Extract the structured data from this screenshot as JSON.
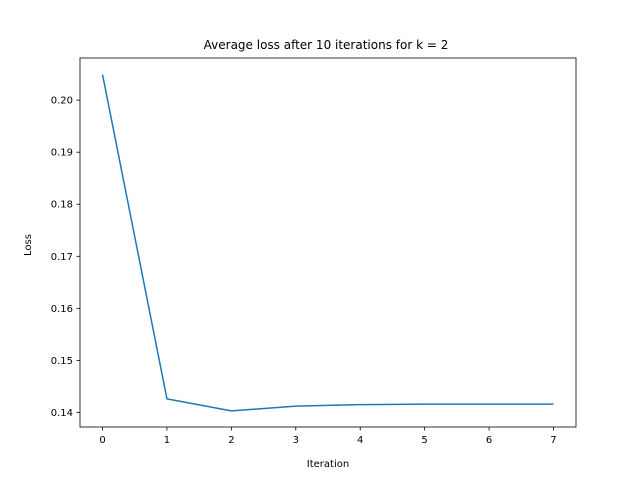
{
  "chart_data": {
    "type": "line",
    "title": "Average loss after 10 iterations for k = 2",
    "xlabel": "Iteration",
    "ylabel": "Loss",
    "xlim": [
      -0.35,
      7.35
    ],
    "ylim": [
      0.1372,
      0.2081
    ],
    "x_ticks": [
      0,
      1,
      2,
      3,
      4,
      5,
      6,
      7
    ],
    "y_ticks": [
      0.14,
      0.15,
      0.16,
      0.17,
      0.18,
      0.19,
      0.2
    ],
    "y_tick_labels": [
      "0.14",
      "0.15",
      "0.16",
      "0.17",
      "0.18",
      "0.19",
      "0.20"
    ],
    "grid": false,
    "legend": "none",
    "series": [
      {
        "color": "#1f77b4",
        "x": [
          0,
          1,
          2,
          3,
          4,
          5,
          6,
          7
        ],
        "y": [
          0.2049,
          0.1426,
          0.1403,
          0.1412,
          0.1415,
          0.1416,
          0.1416,
          0.1416
        ]
      }
    ]
  }
}
